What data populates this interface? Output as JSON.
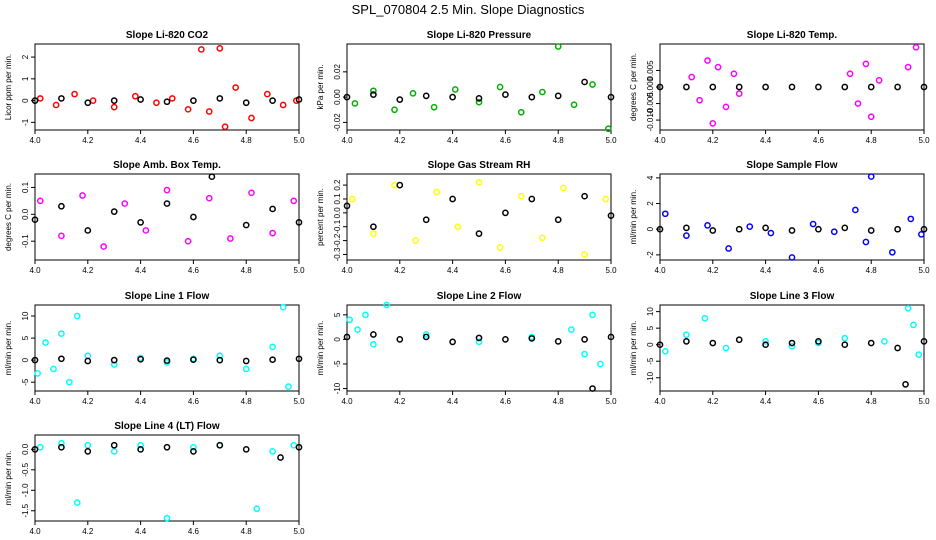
{
  "figure": {
    "title": "SPL_070804  2.5 Min. Slope Diagnostics"
  },
  "chart_data": [
    {
      "type": "scatter",
      "title": "Slope Li-820 CO2",
      "xlabel": "",
      "ylabel": "Licor ppm per min.",
      "xlim": [
        4.0,
        5.0
      ],
      "ylim": [
        -1.35,
        2.6
      ],
      "xticks": [
        "4.0",
        "4.2",
        "4.4",
        "4.6",
        "4.8",
        "5.0"
      ],
      "yticks": [
        "-1",
        "0",
        "1",
        "2"
      ],
      "series": [
        {
          "color": "#ff0000",
          "x": [
            4.02,
            4.08,
            4.15,
            4.22,
            4.3,
            4.38,
            4.46,
            4.52,
            4.58,
            4.63,
            4.66,
            4.7,
            4.72,
            4.76,
            4.82,
            4.88,
            4.94,
            4.99
          ],
          "y": [
            0.1,
            -0.2,
            0.3,
            0.0,
            -0.3,
            0.2,
            -0.1,
            0.1,
            -0.4,
            2.35,
            -0.5,
            2.4,
            -1.2,
            0.6,
            -0.8,
            0.3,
            -0.2,
            0.0
          ]
        },
        {
          "color": "#000000",
          "x": [
            4.0,
            4.1,
            4.2,
            4.3,
            4.4,
            4.5,
            4.6,
            4.7,
            4.8,
            4.9,
            5.0
          ],
          "y": [
            0.0,
            0.1,
            -0.1,
            0.0,
            0.05,
            -0.05,
            0.0,
            0.1,
            -0.1,
            0.0,
            0.05
          ]
        }
      ]
    },
    {
      "type": "scatter",
      "title": "Slope Li-820 Pressure",
      "xlabel": "",
      "ylabel": "kPa per min.",
      "xlim": [
        4.0,
        5.0
      ],
      "ylim": [
        -0.026,
        0.042
      ],
      "xticks": [
        "4.0",
        "4.2",
        "4.4",
        "4.6",
        "4.8",
        "5.0"
      ],
      "yticks": [
        "-0.02",
        "0.00",
        "0.02"
      ],
      "series": [
        {
          "color": "#00b000",
          "x": [
            4.03,
            4.1,
            4.18,
            4.25,
            4.33,
            4.41,
            4.5,
            4.58,
            4.66,
            4.74,
            4.8,
            4.86,
            4.93,
            4.99
          ],
          "y": [
            -0.005,
            0.005,
            -0.01,
            0.003,
            -0.008,
            0.006,
            -0.004,
            0.008,
            -0.012,
            0.004,
            0.04,
            -0.006,
            0.01,
            -0.025
          ]
        },
        {
          "color": "#000000",
          "x": [
            4.0,
            4.1,
            4.2,
            4.3,
            4.4,
            4.5,
            4.6,
            4.7,
            4.8,
            4.9,
            5.0
          ],
          "y": [
            0.0,
            0.002,
            -0.002,
            0.001,
            0.0,
            -0.001,
            0.002,
            0.0,
            0.001,
            0.012,
            0.0
          ]
        }
      ]
    },
    {
      "type": "scatter",
      "title": "Slope Li-820 Temp.",
      "xlabel": "",
      "ylabel": "degrees C per min.",
      "xlim": [
        4.0,
        5.0
      ],
      "ylim": [
        -0.013,
        0.013
      ],
      "xticks": [
        "4.0",
        "4.2",
        "4.4",
        "4.6",
        "4.8",
        "5.0"
      ],
      "yticks": [
        "-0.010",
        "-0.005",
        "0.000",
        "0.005"
      ],
      "series": [
        {
          "color": "#ff00ff",
          "x": [
            4.12,
            4.15,
            4.18,
            4.2,
            4.22,
            4.25,
            4.28,
            4.3,
            4.72,
            4.75,
            4.78,
            4.8,
            4.83,
            4.94,
            4.97
          ],
          "y": [
            0.003,
            -0.004,
            0.008,
            -0.011,
            0.006,
            -0.006,
            0.004,
            -0.002,
            0.004,
            -0.005,
            0.007,
            -0.009,
            0.002,
            0.006,
            0.012
          ]
        },
        {
          "color": "#000000",
          "x": [
            4.0,
            4.1,
            4.2,
            4.3,
            4.4,
            4.5,
            4.6,
            4.7,
            4.8,
            4.9,
            5.0
          ],
          "y": [
            0.0,
            0.0,
            0.0,
            0.0,
            0.0,
            0.0,
            0.0,
            0.0,
            0.0,
            0.0,
            0.0
          ]
        }
      ]
    },
    {
      "type": "scatter",
      "title": "Slope Amb. Box Temp.",
      "xlabel": "",
      "ylabel": "degrees C per min.",
      "xlim": [
        4.0,
        5.0
      ],
      "ylim": [
        -0.17,
        0.15
      ],
      "xticks": [
        "4.0",
        "4.2",
        "4.4",
        "4.6",
        "4.8",
        "5.0"
      ],
      "yticks": [
        "-0.1",
        "0.0",
        "0.1"
      ],
      "series": [
        {
          "color": "#ff00ff",
          "x": [
            4.02,
            4.1,
            4.18,
            4.26,
            4.34,
            4.42,
            4.5,
            4.58,
            4.66,
            4.74,
            4.82,
            4.9,
            4.98
          ],
          "y": [
            0.05,
            -0.08,
            0.07,
            -0.12,
            0.04,
            -0.06,
            0.09,
            -0.1,
            0.06,
            -0.09,
            0.08,
            -0.07,
            0.05
          ]
        },
        {
          "color": "#000000",
          "x": [
            4.0,
            4.1,
            4.2,
            4.3,
            4.4,
            4.5,
            4.6,
            4.67,
            4.8,
            4.9,
            5.0
          ],
          "y": [
            -0.02,
            0.03,
            -0.06,
            0.01,
            -0.03,
            0.04,
            -0.01,
            0.14,
            -0.04,
            0.02,
            -0.03
          ]
        }
      ]
    },
    {
      "type": "scatter",
      "title": "Slope Gas Stream RH",
      "xlabel": "",
      "ylabel": "percent per min.",
      "xlim": [
        4.0,
        5.0
      ],
      "ylim": [
        -0.34,
        0.28
      ],
      "xticks": [
        "4.0",
        "4.2",
        "4.4",
        "4.6",
        "4.8",
        "5.0"
      ],
      "yticks": [
        "-0.3",
        "-0.2",
        "-0.1",
        "0.0",
        "0.1",
        "0.2"
      ],
      "series": [
        {
          "color": "#ffff00",
          "x": [
            4.02,
            4.1,
            4.18,
            4.26,
            4.34,
            4.42,
            4.5,
            4.58,
            4.66,
            4.74,
            4.82,
            4.9,
            4.98
          ],
          "y": [
            0.1,
            -0.15,
            0.2,
            -0.2,
            0.15,
            -0.1,
            0.22,
            -0.25,
            0.12,
            -0.18,
            0.18,
            -0.3,
            0.1
          ]
        },
        {
          "color": "#000000",
          "x": [
            4.0,
            4.1,
            4.2,
            4.3,
            4.4,
            4.5,
            4.6,
            4.7,
            4.8,
            4.9,
            5.0
          ],
          "y": [
            0.05,
            -0.1,
            0.2,
            -0.05,
            0.1,
            -0.15,
            0.0,
            0.1,
            -0.05,
            0.12,
            -0.02
          ]
        }
      ]
    },
    {
      "type": "scatter",
      "title": "Slope Sample Flow",
      "xlabel": "",
      "ylabel": "ml/min per min.",
      "xlim": [
        4.0,
        5.0
      ],
      "ylim": [
        -2.4,
        4.3
      ],
      "xticks": [
        "4.0",
        "4.2",
        "4.4",
        "4.6",
        "4.8",
        "5.0"
      ],
      "yticks": [
        "-2",
        "0",
        "2",
        "4"
      ],
      "series": [
        {
          "color": "#0000ff",
          "x": [
            4.02,
            4.1,
            4.18,
            4.26,
            4.34,
            4.42,
            4.5,
            4.58,
            4.66,
            4.74,
            4.78,
            4.8,
            4.88,
            4.95,
            4.99
          ],
          "y": [
            1.2,
            -0.5,
            0.3,
            -1.5,
            0.2,
            -0.3,
            -2.2,
            0.4,
            -0.2,
            1.5,
            -1.0,
            4.1,
            -1.8,
            0.8,
            -0.4
          ]
        },
        {
          "color": "#000000",
          "x": [
            4.0,
            4.1,
            4.2,
            4.3,
            4.4,
            4.5,
            4.6,
            4.7,
            4.8,
            4.9,
            5.0
          ],
          "y": [
            0.0,
            0.1,
            -0.1,
            0.0,
            0.1,
            -0.1,
            0.0,
            0.1,
            -0.1,
            0.0,
            0.0
          ]
        }
      ]
    },
    {
      "type": "scatter",
      "title": "Slope Line 1 Flow",
      "xlabel": "",
      "ylabel": "ml/min per min.",
      "xlim": [
        4.0,
        5.0
      ],
      "ylim": [
        -7,
        12.5
      ],
      "xticks": [
        "4.0",
        "4.2",
        "4.4",
        "4.6",
        "4.8",
        "5.0"
      ],
      "yticks": [
        "-5",
        "0",
        "5",
        "10"
      ],
      "series": [
        {
          "color": "#00ffff",
          "x": [
            4.01,
            4.04,
            4.07,
            4.1,
            4.13,
            4.16,
            4.2,
            4.3,
            4.4,
            4.5,
            4.6,
            4.7,
            4.8,
            4.9,
            4.94,
            4.96
          ],
          "y": [
            -3,
            4,
            -2,
            6,
            -5,
            10,
            1,
            -1,
            0.5,
            -0.5,
            0.3,
            1,
            -2,
            3,
            12,
            -6
          ]
        },
        {
          "color": "#000000",
          "x": [
            4.0,
            4.1,
            4.2,
            4.3,
            4.4,
            4.5,
            4.6,
            4.7,
            4.8,
            4.9,
            5.0
          ],
          "y": [
            0.0,
            0.3,
            -0.2,
            0.0,
            0.2,
            -0.1,
            0.1,
            0.0,
            -0.2,
            0.1,
            0.3
          ]
        }
      ]
    },
    {
      "type": "scatter",
      "title": "Slope Line 2 Flow",
      "xlabel": "",
      "ylabel": "ml/min per min.",
      "xlim": [
        4.0,
        5.0
      ],
      "ylim": [
        -10.5,
        7
      ],
      "xticks": [
        "4.0",
        "4.2",
        "4.4",
        "4.6",
        "4.8",
        "5.0"
      ],
      "yticks": [
        "-10",
        "-5",
        "0",
        "5"
      ],
      "series": [
        {
          "color": "#00ffff",
          "x": [
            4.01,
            4.04,
            4.07,
            4.1,
            4.15,
            4.3,
            4.5,
            4.7,
            4.85,
            4.9,
            4.93,
            4.96
          ],
          "y": [
            4,
            2,
            5,
            -1,
            7,
            1,
            -0.5,
            0.5,
            2,
            -3,
            5,
            -5
          ]
        },
        {
          "color": "#000000",
          "x": [
            4.0,
            4.1,
            4.2,
            4.3,
            4.4,
            4.5,
            4.6,
            4.7,
            4.8,
            4.9,
            4.93,
            5.0
          ],
          "y": [
            0.5,
            1.0,
            0.0,
            0.5,
            -0.5,
            0.3,
            0.0,
            0.2,
            -0.4,
            0.0,
            -10.0,
            0.5
          ]
        }
      ]
    },
    {
      "type": "scatter",
      "title": "Slope Line 3 Flow",
      "xlabel": "",
      "ylabel": "ml/min per min.",
      "xlim": [
        4.0,
        5.0
      ],
      "ylim": [
        -14,
        12
      ],
      "xticks": [
        "4.0",
        "4.2",
        "4.4",
        "4.6",
        "4.8",
        "5.0"
      ],
      "yticks": [
        "-10",
        "-5",
        "0",
        "5",
        "10"
      ],
      "series": [
        {
          "color": "#00ffff",
          "x": [
            4.02,
            4.1,
            4.17,
            4.25,
            4.4,
            4.5,
            4.6,
            4.7,
            4.85,
            4.94,
            4.96,
            4.98
          ],
          "y": [
            -2,
            3,
            8,
            -1,
            1,
            -0.5,
            0.5,
            2,
            1,
            11,
            6,
            -3
          ]
        },
        {
          "color": "#000000",
          "x": [
            4.0,
            4.1,
            4.2,
            4.3,
            4.4,
            4.5,
            4.6,
            4.7,
            4.8,
            4.9,
            4.93,
            5.0
          ],
          "y": [
            0.0,
            1.0,
            0.5,
            1.5,
            0.0,
            0.5,
            1.0,
            0.0,
            0.5,
            -1.0,
            -12.0,
            1.0
          ]
        }
      ]
    },
    {
      "type": "scatter",
      "title": "Slope Line 4 (LT) Flow",
      "xlabel": "",
      "ylabel": "ml/min per min.",
      "xlim": [
        4.0,
        5.0
      ],
      "ylim": [
        -1.75,
        0.35
      ],
      "xticks": [
        "4.0",
        "4.2",
        "4.4",
        "4.6",
        "4.8",
        "5.0"
      ],
      "yticks": [
        "-1.5",
        "-1.0",
        "-0.5",
        "0.0"
      ],
      "series": [
        {
          "color": "#00ffff",
          "x": [
            4.02,
            4.1,
            4.16,
            4.2,
            4.3,
            4.4,
            4.5,
            4.6,
            4.7,
            4.84,
            4.9,
            4.98
          ],
          "y": [
            0.05,
            0.15,
            -1.3,
            0.1,
            -0.05,
            0.1,
            -1.68,
            0.05,
            0.1,
            -1.45,
            -0.05,
            0.1
          ]
        },
        {
          "color": "#000000",
          "x": [
            4.0,
            4.1,
            4.2,
            4.3,
            4.4,
            4.5,
            4.6,
            4.7,
            4.8,
            4.93,
            5.0
          ],
          "y": [
            0.0,
            0.05,
            -0.05,
            0.1,
            0.0,
            0.05,
            -0.05,
            0.1,
            0.0,
            -0.2,
            0.05
          ]
        }
      ]
    }
  ]
}
